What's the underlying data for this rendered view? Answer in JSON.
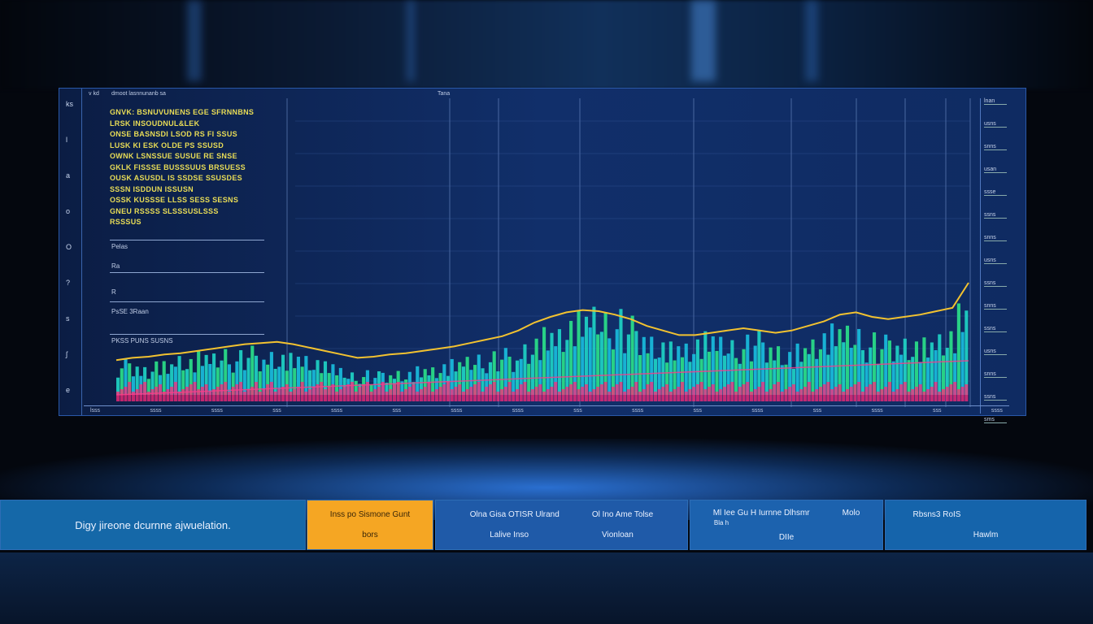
{
  "panel": {
    "side_labels": [
      "ks",
      "l",
      "a",
      "o",
      "O",
      "?",
      "s",
      "ʃ",
      "e"
    ],
    "header": [
      "v kd",
      "dmoot lasnnunanb sa",
      "Tana"
    ],
    "text_lines": [
      "GNVK: BSNUVUNENS EGE SFRNNBNS",
      "LRSK INSOUDNUL&LEK",
      "ONSE BASNSDI LSOD RS FI SSUS",
      "LUSK KI ESK OLDE PS  SSUSD",
      "OWNK LSNSSUE SUSUE RE SNSE",
      "GKLK FISSSE BUSSSUUS BRSUESS",
      "OUSK ASUSDL IS SSDSE SSUSDES",
      "SSSN ISDDUN ISSUSN",
      "OSSK KUSSSE LLSS SESS  SESNS",
      "GNEU RSSSS SLSSSUSLSSS",
      "RSSSUS"
    ],
    "lower_labels": [
      "Pelas",
      "Ra",
      "R",
      "PsSE 3Raan",
      "PKSS PUNS SUSNS"
    ],
    "right_labels": [
      "lnan",
      "usns",
      "snns",
      "usan",
      "ssse",
      "ssns",
      "snns",
      "usns",
      "ssns",
      "snns",
      "ssns",
      "usns",
      "snns",
      "ssns",
      "sms"
    ],
    "x_labels": [
      "lsss",
      "ssss",
      "ssss",
      "sss",
      "ssss",
      "sss",
      "ssss",
      "ssss",
      "sss",
      "ssss",
      "sss",
      "ssss",
      "sss",
      "ssss",
      "sss",
      "ssss"
    ]
  },
  "chart_data": {
    "type": "bar",
    "title": "",
    "xlabel": "",
    "ylabel": "",
    "grid": true,
    "colors": {
      "bars": [
        "#1fd6c6",
        "#2be38a",
        "#19c0e0"
      ],
      "tops": "#ff2a7a",
      "line": "#f2c230",
      "base": "#ff3a8a"
    },
    "values": [
      38,
      40,
      36,
      42,
      39,
      44,
      41,
      45,
      43,
      47,
      46,
      50,
      48,
      52,
      49,
      47,
      44,
      40,
      36,
      30,
      26,
      28,
      27,
      30,
      32,
      31,
      34,
      33,
      36,
      38,
      40,
      42,
      45,
      48,
      47,
      60,
      66,
      72,
      70,
      78,
      82,
      85,
      80,
      83,
      77,
      74,
      68,
      62,
      58,
      56,
      60,
      63,
      58,
      55,
      60,
      64,
      62,
      58,
      52,
      56,
      60,
      66,
      70,
      68,
      65,
      62,
      60,
      64,
      66,
      63,
      62,
      65,
      68,
      88
    ],
    "line": [
      22,
      24,
      25,
      27,
      28,
      30,
      32,
      34,
      36,
      37,
      38,
      36,
      33,
      30,
      27,
      24,
      25,
      27,
      28,
      30,
      32,
      34,
      37,
      40,
      43,
      48,
      55,
      60,
      64,
      66,
      65,
      62,
      58,
      52,
      48,
      44,
      44,
      46,
      48,
      50,
      48,
      46,
      48,
      52,
      56,
      62,
      64,
      60,
      58,
      60,
      62,
      65,
      68,
      90
    ]
  },
  "bottom": {
    "title": "Digy jireone dcurnne ajwuelation.",
    "orange": {
      "top": "Inss po Sismone Gunt",
      "bottom": "bors"
    },
    "b2": {
      "tl": "Olna Gisa OTISR Ulrand",
      "tr": "Ol Ino Ame Tolse",
      "bl": "Lalive Inso",
      "br": "Vionloan"
    },
    "b3": {
      "tl": "Ml Iee Gu H Iurnne Dlhsmr",
      "tr": "Molo",
      "ml": "Bla h",
      "b": "DIIe"
    },
    "b4": {
      "t": "Rbsns3 RoIS",
      "b": "Hawlm"
    }
  }
}
